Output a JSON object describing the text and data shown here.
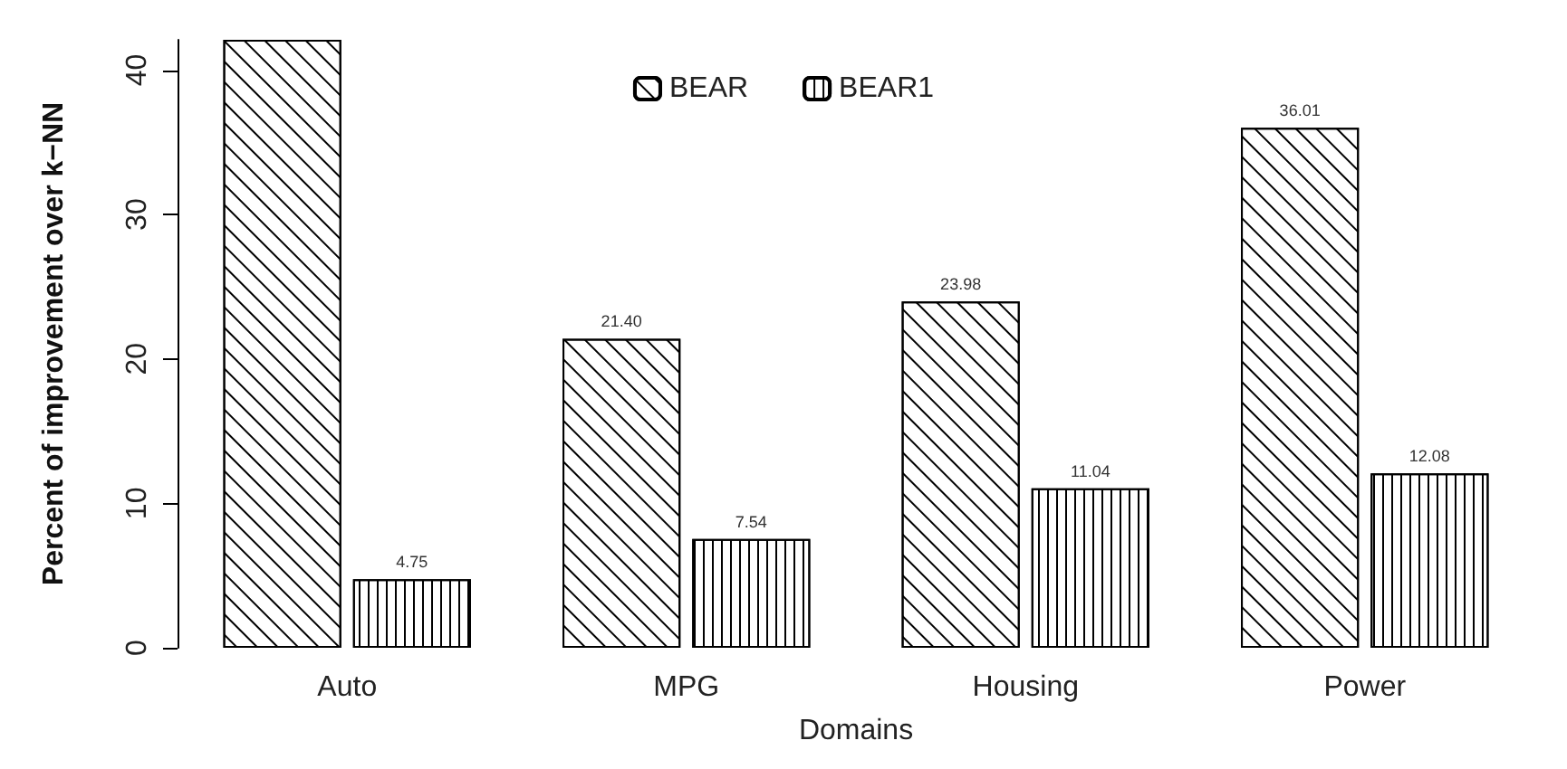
{
  "chart_data": {
    "type": "bar",
    "xlabel": "Domains",
    "ylabel": "Percent of improvement over k−NN",
    "categories": [
      "Auto",
      "MPG",
      "Housing",
      "Power"
    ],
    "series": [
      {
        "name": "BEAR",
        "color": "#ffffff",
        "values": [
          42.1,
          21.4,
          23.98,
          36.01
        ],
        "value_labels": [
          null,
          "21.40",
          "23.98",
          "36.01"
        ]
      },
      {
        "name": "BEAR1",
        "color": "#ffffff",
        "values": [
          4.75,
          7.54,
          11.04,
          12.08
        ],
        "value_labels": [
          "4.75",
          "7.54",
          "11.04",
          "12.08"
        ]
      }
    ],
    "ylim": [
      0,
      42.1
    ],
    "yticks": [
      0,
      10,
      20,
      30,
      40
    ],
    "grid": false,
    "legend": "top"
  }
}
